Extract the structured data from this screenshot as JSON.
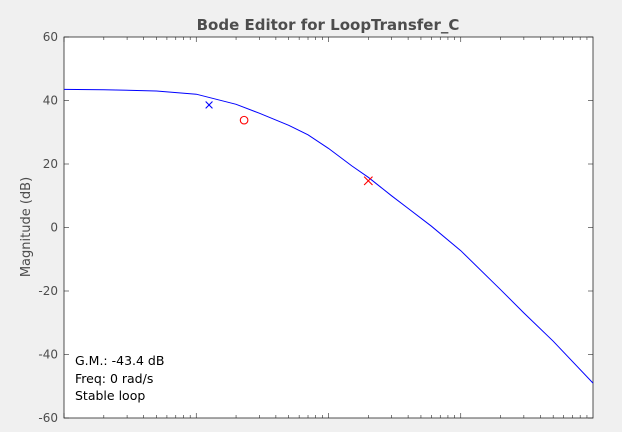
{
  "chart_data": {
    "type": "line",
    "title": "Bode Editor for LoopTransfer_C",
    "xlabel": "",
    "ylabel": "Magnitude (dB)",
    "ylim": [
      -60,
      60
    ],
    "yticks": [
      60,
      40,
      20,
      0,
      -20,
      -40,
      -60
    ],
    "x_scale": "log",
    "xlim_decades": [
      -1,
      3
    ],
    "grid": false,
    "series": [
      {
        "x": [
          0.1,
          0.2,
          0.5,
          1,
          2,
          3,
          5,
          7,
          10,
          15,
          20,
          30,
          40,
          60,
          100,
          200,
          300,
          500,
          1000
        ],
        "values": [
          43.5,
          43.4,
          43.0,
          42.0,
          38.8,
          36.0,
          32.2,
          29.2,
          24.9,
          19.4,
          15.8,
          10.0,
          6.0,
          0.4,
          -7.3,
          -19.6,
          -26.9,
          -35.8,
          -49.0
        ],
        "color": "#0000ff"
      }
    ],
    "markers": [
      {
        "kind": "pole",
        "symbol": "x",
        "color": "#0000ff",
        "x": 1.25,
        "y": 38.6
      },
      {
        "kind": "zero",
        "symbol": "o",
        "color": "#ff0000",
        "x": 2.3,
        "y": 33.8
      },
      {
        "kind": "pole",
        "symbol": "x",
        "color": "#ff0000",
        "x": 20,
        "y": 14.7
      }
    ],
    "annotations": [
      "G.M.: -43.4 dB",
      "Freq: 0 rad/s",
      "Stable loop"
    ]
  }
}
